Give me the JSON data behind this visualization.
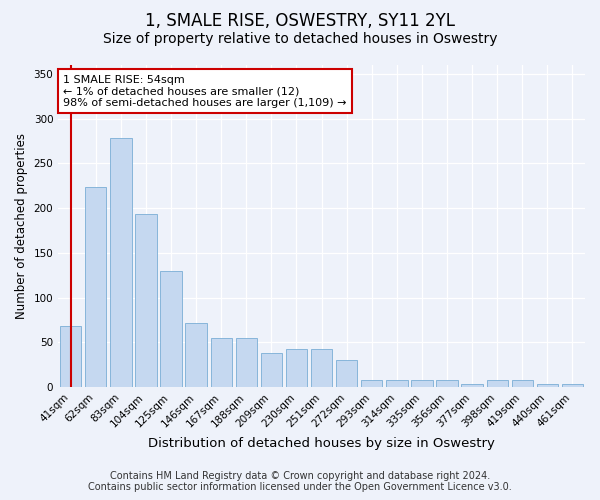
{
  "title": "1, SMALE RISE, OSWESTRY, SY11 2YL",
  "subtitle": "Size of property relative to detached houses in Oswestry",
  "xlabel": "Distribution of detached houses by size in Oswestry",
  "ylabel": "Number of detached properties",
  "categories": [
    "41sqm",
    "62sqm",
    "83sqm",
    "104sqm",
    "125sqm",
    "146sqm",
    "167sqm",
    "188sqm",
    "209sqm",
    "230sqm",
    "251sqm",
    "272sqm",
    "293sqm",
    "314sqm",
    "335sqm",
    "356sqm",
    "377sqm",
    "398sqm",
    "419sqm",
    "440sqm",
    "461sqm"
  ],
  "values": [
    68,
    224,
    278,
    193,
    130,
    72,
    55,
    55,
    38,
    42,
    42,
    30,
    8,
    8,
    8,
    8,
    3,
    8,
    8,
    3,
    3
  ],
  "bar_color": "#c5d8f0",
  "bar_edge_color": "#7aaed6",
  "highlight_color": "#cc0000",
  "annotation_text": "1 SMALE RISE: 54sqm\n← 1% of detached houses are smaller (12)\n98% of semi-detached houses are larger (1,109) →",
  "annotation_box_color": "#ffffff",
  "annotation_box_edge_color": "#cc0000",
  "ylim": [
    0,
    360
  ],
  "yticks": [
    0,
    50,
    100,
    150,
    200,
    250,
    300,
    350
  ],
  "background_color": "#eef2fa",
  "plot_background_color": "#eef2fa",
  "footer_line1": "Contains HM Land Registry data © Crown copyright and database right 2024.",
  "footer_line2": "Contains public sector information licensed under the Open Government Licence v3.0.",
  "title_fontsize": 12,
  "subtitle_fontsize": 10,
  "xlabel_fontsize": 9.5,
  "ylabel_fontsize": 8.5,
  "tick_fontsize": 7.5,
  "footer_fontsize": 7,
  "annotation_fontsize": 8
}
